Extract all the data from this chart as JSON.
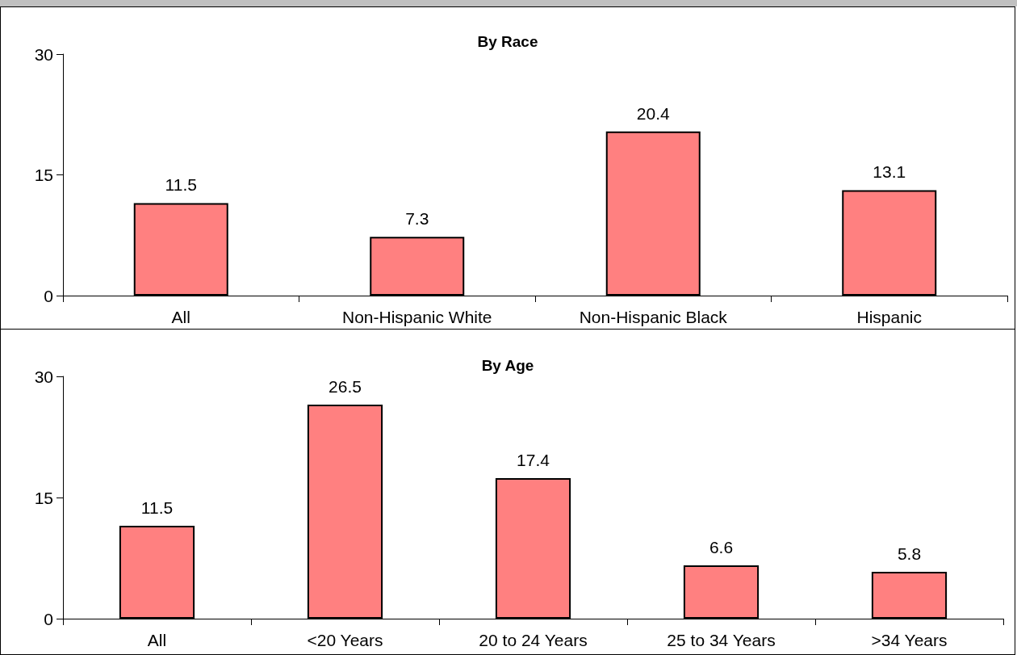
{
  "chart_data": [
    {
      "type": "bar",
      "title": "By Race",
      "categories": [
        "All",
        "Non-Hispanic White",
        "Non-Hispanic Black",
        "Hispanic"
      ],
      "values": [
        11.5,
        7.3,
        20.4,
        13.1
      ],
      "color": "#ff8080",
      "ylim": [
        0,
        30
      ],
      "yticks": [
        0,
        15,
        30
      ],
      "grid": false,
      "data_labels": true
    },
    {
      "type": "bar",
      "title": "By Age",
      "categories": [
        "All",
        "<20 Years",
        "20 to 24 Years",
        "25 to 34 Years",
        ">34 Years"
      ],
      "values": [
        11.5,
        26.5,
        17.4,
        6.6,
        5.8
      ],
      "color": "#ff8080",
      "ylim": [
        0,
        30
      ],
      "yticks": [
        0,
        15,
        30
      ],
      "grid": false,
      "data_labels": true
    }
  ]
}
